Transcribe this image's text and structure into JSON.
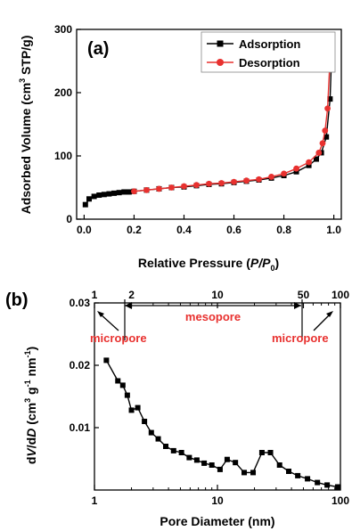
{
  "colors": {
    "adsorption": "#000000",
    "desorption": "#e8312f",
    "annotation": "#e8312f"
  },
  "chart_data": [
    {
      "panel": "(a)",
      "type": "line",
      "xlabel_parts": {
        "prefix": "Relative Pressure (",
        "italic": "P/P",
        "sub": "0",
        "suffix": ")"
      },
      "ylabel_parts": {
        "prefix": "Adsorbed  Volume (cm",
        "sup": "3",
        "suffix": " STP/g)"
      },
      "xlim": [
        -0.03,
        1.03
      ],
      "ylim": [
        0,
        300
      ],
      "xticks": [
        0.0,
        0.2,
        0.4,
        0.6,
        0.8,
        1.0
      ],
      "xtick_labels": [
        "0.0",
        "0.2",
        "0.4",
        "0.6",
        "0.8",
        "1.0"
      ],
      "yticks": [
        0,
        100,
        200,
        300
      ],
      "ytick_labels": [
        "0",
        "100",
        "200",
        "300"
      ],
      "legend": "top-right",
      "series": [
        {
          "name": "Adsorption",
          "marker": "square",
          "color": "#000000",
          "x": [
            0.005,
            0.02,
            0.04,
            0.06,
            0.08,
            0.1,
            0.12,
            0.14,
            0.16,
            0.18,
            0.2,
            0.25,
            0.3,
            0.35,
            0.4,
            0.45,
            0.5,
            0.55,
            0.6,
            0.65,
            0.7,
            0.75,
            0.8,
            0.85,
            0.9,
            0.93,
            0.95,
            0.97,
            0.985,
            0.993
          ],
          "y": [
            23,
            32,
            36,
            38,
            39,
            40,
            41,
            42,
            43,
            43,
            44,
            46,
            48,
            50,
            51,
            53,
            55,
            56,
            58,
            60,
            62,
            65,
            69,
            75,
            85,
            95,
            105,
            130,
            190,
            280
          ]
        },
        {
          "name": "Desorption",
          "marker": "circle",
          "color": "#e8312f",
          "x": [
            0.99,
            0.985,
            0.975,
            0.965,
            0.955,
            0.94,
            0.9,
            0.85,
            0.8,
            0.75,
            0.7,
            0.65,
            0.6,
            0.55,
            0.5,
            0.45,
            0.4,
            0.35,
            0.3,
            0.25,
            0.2
          ],
          "y": [
            265,
            255,
            175,
            140,
            120,
            105,
            90,
            80,
            72,
            67,
            63,
            61,
            59,
            57,
            56,
            54,
            52,
            50,
            48,
            46,
            44
          ]
        }
      ]
    },
    {
      "panel": "(b)",
      "type": "line",
      "x_scale": "log",
      "xlabel": "Pore Diameter (nm)",
      "ylabel_parts": {
        "d": "d",
        "V": "V",
        "slash": "/d",
        "D": "D",
        "paren": " (cm",
        "sup1": "3",
        "g": " g",
        "sup2": "-1",
        "nm": " nm",
        "sup3": "-1",
        "close": ")"
      },
      "xlim": [
        1,
        100
      ],
      "ylim": [
        0,
        0.03
      ],
      "xticks": [
        1,
        10,
        100
      ],
      "xtick_labels": [
        "1",
        "10",
        "100"
      ],
      "top_xticks": [
        1,
        2,
        10,
        50,
        100
      ],
      "top_xtick_labels": [
        "1",
        "2",
        "10",
        "50",
        "100"
      ],
      "yticks": [
        0.01,
        0.02,
        0.03
      ],
      "ytick_labels": [
        "0.01",
        "0.02",
        "0.03"
      ],
      "annotations": {
        "left": "micropore",
        "middle": "mesopore",
        "right": "micropore"
      },
      "series": [
        {
          "marker": "square",
          "color": "#000000",
          "x": [
            1.25,
            1.55,
            1.7,
            1.85,
            2.0,
            2.25,
            2.55,
            2.9,
            3.3,
            3.8,
            4.4,
            5.1,
            5.9,
            6.8,
            7.8,
            9.0,
            10.5,
            12.0,
            14.0,
            16.5,
            19.5,
            23.0,
            27.0,
            32.0,
            38.0,
            45.0,
            54.0,
            65.0,
            78.0,
            95.0
          ],
          "y": [
            0.0208,
            0.0175,
            0.0168,
            0.0152,
            0.0128,
            0.0132,
            0.011,
            0.0092,
            0.0082,
            0.007,
            0.0063,
            0.006,
            0.0052,
            0.0048,
            0.0043,
            0.004,
            0.0033,
            0.0049,
            0.0044,
            0.0028,
            0.0028,
            0.006,
            0.006,
            0.004,
            0.003,
            0.0023,
            0.0018,
            0.0012,
            0.0008,
            0.0005
          ]
        }
      ]
    }
  ]
}
